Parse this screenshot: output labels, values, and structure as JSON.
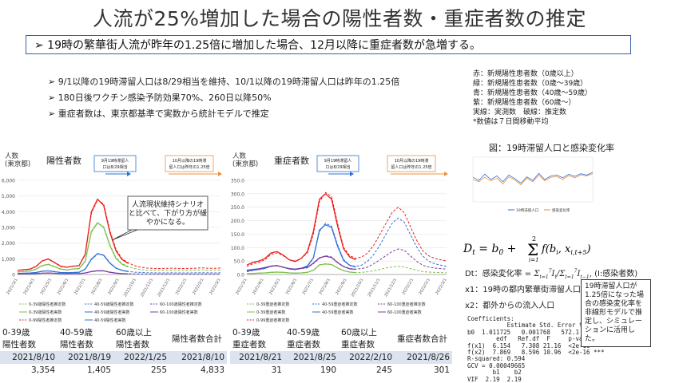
{
  "title": "人流が25%増加した場合の陽性者数・重症者数の推定",
  "banner": "➢ 19時の繁華街人流が昨年の1.25倍に増加した場合、12月以降に重症者数が急増する。",
  "bullets": [
    "➢ 9/1以降の19時滞留人口は8/29相当を維持、10/1以降の19時滞留人口は昨年の1.25倍",
    "➢ 180日後ワクチン感染予防効果70%、260日以降50%",
    "➢ 重症者数は、東京都基準で実数から統計モデルで推定"
  ],
  "legend_notes": [
    "赤：新規陽性患者数（0歳以上）",
    "緑：新規陽性患者数（0歳～39歳）",
    "青：新規陽性患者数（40歳～59歳）",
    "紫：新規陽性患者数（60歳～）",
    "実線：実測数　破線：推定数",
    "*数値は７日間移動平均"
  ],
  "colors": {
    "red": "#e8201e",
    "green": "#7cc24a",
    "blue": "#2f72d6",
    "purple": "#7a3fa8",
    "orange": "#f0913a",
    "accent": "#3b5ea8"
  },
  "chart_data": [
    {
      "type": "line",
      "title": "陽性者数",
      "ylabel": "人数\n(東京都)",
      "ylim": [
        0,
        6000
      ],
      "yticks": [
        "0",
        "1,000",
        "2,000",
        "3,000",
        "4,000",
        "5,000",
        "6,000"
      ],
      "xticks": [
        "2021/3/1",
        "2021/4/1",
        "2021/5/1",
        "2021/6/1",
        "2021/7/1",
        "2021/8/1",
        "2021/9/1",
        "2021/10/1",
        "2021/11/1",
        "2021/12/1",
        "2022/1/1",
        "2022/2/1",
        "2022/3/1"
      ],
      "annotations": [
        "9月19時滞留人口は8/29相当",
        "10月以降の19時滞留人口は昨年の1.25倍"
      ],
      "callout": "人流現状維持シナリオと比べて、下がり方が緩やかになる。",
      "legend": [
        "0-39歳陽性者推定数",
        "40-59歳陽性者推定数",
        "60-100歳陽性者推定数",
        "0-39歳陽性者実数",
        "40-59歳陽性者実数",
        "60-100歳陽性者実数",
        "0-99陽性者推定数",
        "40-59陽性者実数"
      ],
      "series": [
        {
          "name": "0-99陽性者推定数",
          "color": "red",
          "dash": true,
          "values": [
            270,
            300,
            330,
            500,
            850,
            1000,
            780,
            550,
            470,
            520,
            580,
            1250,
            3900,
            4750,
            4500,
            2800,
            1600,
            1000,
            750,
            560,
            470,
            410,
            390,
            380,
            390,
            400,
            390,
            380,
            390,
            400,
            420,
            400,
            390,
            410
          ]
        },
        {
          "name": "0-39歳陽性者推定数",
          "color": "green",
          "dash": true,
          "values": [
            170,
            190,
            210,
            330,
            560,
            660,
            520,
            360,
            300,
            340,
            380,
            820,
            2700,
            3250,
            3050,
            1900,
            1080,
            690,
            510,
            380,
            320,
            280,
            270,
            260,
            270,
            270,
            260,
            260,
            270,
            280,
            290,
            270,
            270,
            280
          ]
        },
        {
          "name": "40-59歳陽性者推定数",
          "color": "blue",
          "dash": true,
          "values": [
            70,
            80,
            85,
            120,
            200,
            240,
            190,
            130,
            110,
            120,
            140,
            330,
            950,
            1300,
            1250,
            750,
            420,
            270,
            200,
            150,
            130,
            110,
            105,
            100,
            100,
            105,
            100,
            100,
            100,
            105,
            110,
            105,
            100,
            105
          ]
        },
        {
          "name": "60-100歳陽性者推定数",
          "color": "purple",
          "dash": true,
          "values": [
            40,
            45,
            48,
            60,
            80,
            100,
            80,
            60,
            55,
            55,
            60,
            90,
            180,
            230,
            240,
            150,
            90,
            60,
            50,
            40,
            35,
            33,
            32,
            31,
            31,
            32,
            31,
            31,
            31,
            32,
            33,
            32,
            31,
            32
          ]
        },
        {
          "name": "実数(0-99)",
          "color": "red",
          "dash": false,
          "values": [
            260,
            310,
            340,
            520,
            870,
            980,
            760,
            520,
            460,
            530,
            560,
            1300,
            4000,
            4800,
            4400,
            2700,
            1500,
            950,
            700
          ]
        },
        {
          "name": "0-39歳陽性者実数",
          "color": "green",
          "dash": false,
          "values": [
            160,
            200,
            220,
            340,
            570,
            640,
            500,
            340,
            290,
            350,
            370,
            860,
            2750,
            3300,
            3000,
            1850,
            1020,
            650,
            480
          ]
        },
        {
          "name": "40-59歳陽性者実数",
          "color": "blue",
          "dash": false,
          "values": [
            70,
            80,
            90,
            125,
            210,
            230,
            180,
            125,
            110,
            125,
            140,
            340,
            980,
            1330,
            1220,
            720,
            400,
            260,
            190
          ]
        },
        {
          "name": "60-100歳陽性者実数",
          "color": "purple",
          "dash": false,
          "values": [
            40,
            45,
            50,
            62,
            82,
            95,
            78,
            58,
            55,
            57,
            60,
            95,
            190,
            240,
            230,
            140,
            85,
            58,
            48
          ]
        }
      ]
    },
    {
      "type": "line",
      "title": "重症者数",
      "ylabel": "人数\n(東京都)",
      "ylim": [
        0,
        350
      ],
      "yticks": [
        "0.0",
        "50.0",
        "100.0",
        "150.0",
        "200.0",
        "250.0",
        "300.0",
        "350.0"
      ],
      "xticks": [
        "2021/3/1",
        "2021/4/1",
        "2021/5/1",
        "2021/6/1",
        "2021/7/1",
        "2021/8/1",
        "2021/9/1",
        "2021/10/1",
        "2021/11/1",
        "2021/12/1",
        "2022/1/1",
        "2022/2/1",
        "2022/3/1"
      ],
      "annotations": [
        "9月19時滞留人口は8/29相当",
        "10月以降の19時滞留人口は昨年の1.25倍"
      ],
      "legend": [
        "0-39重症者推定数",
        "40-59重症者推定数",
        "60-100重症者推定数",
        "0-39重症者実数",
        "40-59重症者実数",
        "60-100重症者実数",
        "0-99重症者推定数"
      ],
      "series": [
        {
          "name": "0-99重症者推定数",
          "color": "red",
          "dash": true,
          "values": [
            30,
            40,
            45,
            55,
            75,
            80,
            70,
            55,
            50,
            60,
            80,
            150,
            270,
            305,
            290,
            190,
            100,
            70,
            60,
            65,
            80,
            110,
            150,
            190,
            230,
            250,
            230,
            180,
            130,
            90,
            70,
            60,
            55,
            50
          ]
        },
        {
          "name": "40-59重症者推定数",
          "color": "blue",
          "dash": true,
          "values": [
            10,
            15,
            18,
            22,
            30,
            32,
            28,
            20,
            18,
            22,
            30,
            60,
            160,
            190,
            180,
            110,
            55,
            35,
            30,
            35,
            50,
            75,
            110,
            150,
            190,
            210,
            195,
            150,
            105,
            70,
            50,
            40,
            35,
            30
          ]
        },
        {
          "name": "60-100重症者推定数",
          "color": "purple",
          "dash": true,
          "values": [
            15,
            18,
            20,
            25,
            30,
            32,
            28,
            22,
            20,
            22,
            25,
            40,
            60,
            70,
            65,
            45,
            30,
            22,
            20,
            22,
            28,
            40,
            55,
            70,
            85,
            95,
            90,
            70,
            50,
            35,
            28,
            24,
            22,
            20
          ]
        },
        {
          "name": "0-39重症者推定数",
          "color": "green",
          "dash": true,
          "values": [
            3,
            4,
            5,
            6,
            8,
            9,
            8,
            6,
            5,
            6,
            8,
            15,
            35,
            40,
            38,
            25,
            14,
            9,
            7,
            8,
            10,
            14,
            19,
            24,
            28,
            30,
            28,
            22,
            16,
            11,
            9,
            8,
            7,
            6
          ]
        },
        {
          "name": "実数(0-99)",
          "color": "red",
          "dash": false,
          "values": [
            35,
            45,
            50,
            60,
            80,
            85,
            72,
            55,
            48,
            60,
            85,
            160,
            280,
            300,
            280,
            180,
            95,
            65,
            55
          ]
        },
        {
          "name": "40-59重症者実数",
          "color": "blue",
          "dash": false,
          "values": [
            12,
            16,
            19,
            23,
            31,
            33,
            27,
            21,
            18,
            23,
            32,
            62,
            165,
            185,
            175,
            105,
            52,
            34,
            28
          ]
        },
        {
          "name": "60-100重症者実数",
          "color": "purple",
          "dash": false,
          "values": [
            16,
            19,
            21,
            26,
            31,
            33,
            27,
            22,
            20,
            23,
            26,
            42,
            62,
            68,
            63,
            44,
            29,
            21,
            19
          ]
        },
        {
          "name": "0-39重症者実数",
          "color": "green",
          "dash": false,
          "values": [
            3,
            4,
            5,
            6,
            8,
            9,
            8,
            6,
            5,
            6,
            8,
            16,
            36,
            39,
            37,
            24,
            14,
            9,
            7
          ]
        }
      ]
    },
    {
      "type": "line",
      "title": "図：19時滞留人口と感染変化率",
      "legend": [
        "19時滞留人口",
        "感染変化率"
      ],
      "series": [
        {
          "name": "19時滞留人口",
          "color": "blue",
          "dash": false,
          "values": [
            0.55,
            0.48,
            0.62,
            0.5,
            0.58,
            0.45,
            0.6,
            0.52,
            0.42,
            0.56,
            0.48,
            0.64,
            0.5,
            0.58,
            0.6,
            0.54,
            0.62,
            0.57,
            0.63,
            0.6,
            0.66
          ]
        },
        {
          "name": "感染変化率",
          "color": "orange",
          "dash": false,
          "values": [
            0.5,
            0.45,
            0.55,
            0.47,
            0.53,
            0.4,
            0.56,
            0.49,
            0.38,
            0.53,
            0.45,
            0.6,
            0.47,
            0.55,
            0.57,
            0.5,
            0.59,
            0.54,
            0.6,
            0.58,
            0.63
          ]
        }
      ]
    }
  ],
  "tables": [
    {
      "headers": [
        "0-39歳\n陽性者数",
        "40-59歳\n陽性者数",
        "60歳以上\n陽性者数",
        "陽性者数合計"
      ],
      "dates": [
        "2021/8/10",
        "2021/8/19",
        "2022/1/25",
        "2021/8/10"
      ],
      "values": [
        "3,354",
        "1,405",
        "255",
        "4,833"
      ]
    },
    {
      "headers": [
        "0-39歳\n重症者数",
        "40-59歳\n重症者数",
        "60歳以上\n重症者数",
        "重症者数合計"
      ],
      "dates": [
        "2021/8/21",
        "2021/8/25",
        "2022/2/10",
        "2021/8/26"
      ],
      "values": [
        "31",
        "190",
        "245",
        "301"
      ]
    }
  ],
  "model": {
    "formula_lhs": "D",
    "dt_label": "Dt：感染変化率 =",
    "dt_note": "(I:感染者数)",
    "x1": "x1：19時の都内繁華街滞留人口",
    "x2": "x2：都外からの流入人口",
    "stats": "Coefficients:\n           Estimate Std. Error t value  Pr(>|t|)\nb0  1.011725   0.001768   572.1  <2e-16 ***\n        edf   Ref.df  F     p-value\nf(x1)  6.154   7.308 21.16  <2e-16 ***\nf(x2)  7.869   8.596 10.96  <2e-16 ***\nR-squared: 0.594\nGCV = 0.00049665\n       b1    b2\nVIF  2.19  2.19",
    "callout": "19時滞留人口が1.25倍になった場合の感染変化率を非線形モデルで推定し、シミュレーションに活用した。"
  }
}
